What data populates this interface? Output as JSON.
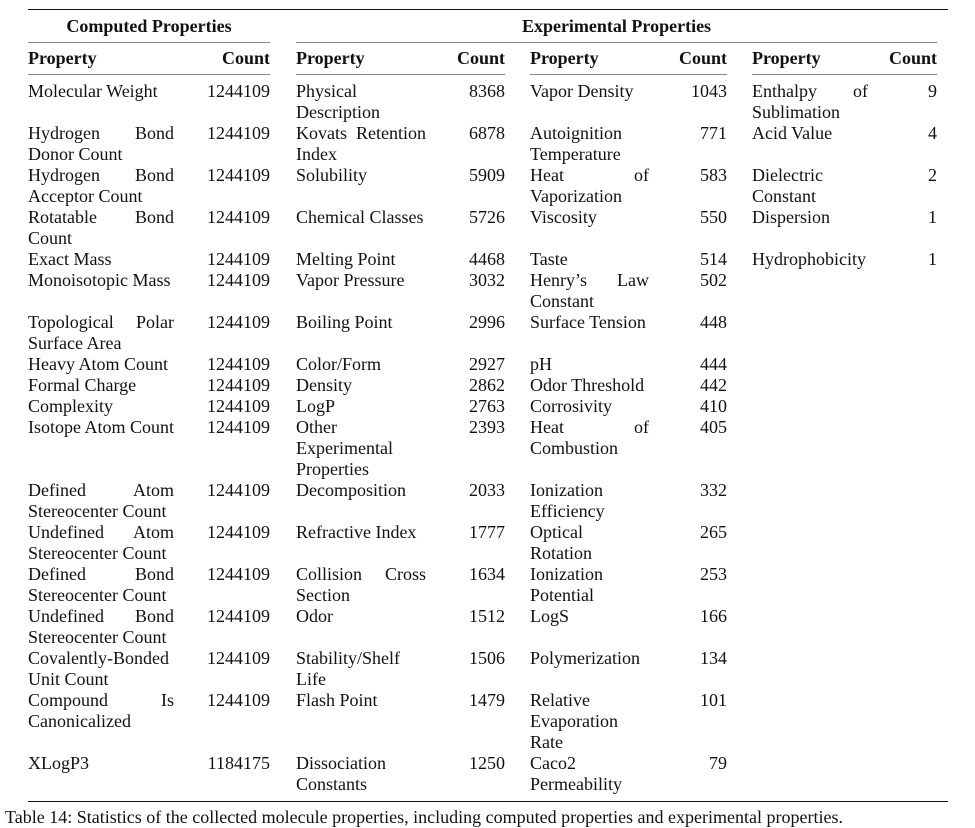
{
  "table": {
    "groups": [
      "Computed Properties",
      "Experimental Properties"
    ],
    "col_headers": {
      "property": "Property",
      "count": "Count"
    },
    "rows": [
      [
        [
          "Molecular Weight",
          "1244109"
        ],
        [
          "Physical Description",
          "8368"
        ],
        [
          "Vapor Density",
          "1043"
        ],
        [
          "Enthalpy of Sublimation",
          "9"
        ]
      ],
      [
        [
          "Hydrogen Bond Donor Count",
          "1244109"
        ],
        [
          "Kovats Retention Index",
          "6878"
        ],
        [
          "Autoignition Temperature",
          "771"
        ],
        [
          "Acid Value",
          "4"
        ]
      ],
      [
        [
          "Hydrogen Bond Acceptor Count",
          "1244109"
        ],
        [
          "Solubility",
          "5909"
        ],
        [
          "Heat of Vaporization",
          "583"
        ],
        [
          "Dielectric Constant",
          "2"
        ]
      ],
      [
        [
          "Rotatable Bond Count",
          "1244109"
        ],
        [
          "Chemical Classes",
          "5726"
        ],
        [
          "Viscosity",
          "550"
        ],
        [
          "Dispersion",
          "1"
        ]
      ],
      [
        [
          "Exact Mass",
          "1244109"
        ],
        [
          "Melting Point",
          "4468"
        ],
        [
          "Taste",
          "514"
        ],
        [
          "Hydrophobicity",
          "1"
        ]
      ],
      [
        [
          "Monoisotopic Mass",
          "1244109"
        ],
        [
          "Vapor Pressure",
          "3032"
        ],
        [
          "Henry’s Law Constant",
          "502"
        ],
        [
          "",
          ""
        ]
      ],
      [
        [
          "Topological Polar Surface Area",
          "1244109"
        ],
        [
          "Boiling Point",
          "2996"
        ],
        [
          "Surface Tension",
          "448"
        ],
        [
          "",
          ""
        ]
      ],
      [
        [
          "Heavy Atom Count",
          "1244109"
        ],
        [
          "Color/Form",
          "2927"
        ],
        [
          "pH",
          "444"
        ],
        [
          "",
          ""
        ]
      ],
      [
        [
          "Formal Charge",
          "1244109"
        ],
        [
          "Density",
          "2862"
        ],
        [
          "Odor Threshold",
          "442"
        ],
        [
          "",
          ""
        ]
      ],
      [
        [
          "Complexity",
          "1244109"
        ],
        [
          "LogP",
          "2763"
        ],
        [
          "Corrosivity",
          "410"
        ],
        [
          "",
          ""
        ]
      ],
      [
        [
          "Isotope Atom Count",
          "1244109"
        ],
        [
          "Other Experimental Properties",
          "2393"
        ],
        [
          "Heat of Combustion",
          "405"
        ],
        [
          "",
          ""
        ]
      ],
      [
        [
          "Defined Atom Stereocenter Count",
          "1244109"
        ],
        [
          "Decomposition",
          "2033"
        ],
        [
          "Ionization Efficiency",
          "332"
        ],
        [
          "",
          ""
        ]
      ],
      [
        [
          "Undefined Atom Stereocenter Count",
          "1244109"
        ],
        [
          "Refractive Index",
          "1777"
        ],
        [
          "Optical Rotation",
          "265"
        ],
        [
          "",
          ""
        ]
      ],
      [
        [
          "Defined Bond Stereocenter Count",
          "1244109"
        ],
        [
          "Collision Cross Section",
          "1634"
        ],
        [
          "Ionization Potential",
          "253"
        ],
        [
          "",
          ""
        ]
      ],
      [
        [
          "Undefined Bond Stereocenter Count",
          "1244109"
        ],
        [
          "Odor",
          "1512"
        ],
        [
          "LogS",
          "166"
        ],
        [
          "",
          ""
        ]
      ],
      [
        [
          "Covalently-Bonded Unit Count",
          "1244109"
        ],
        [
          "Stability/Shelf Life",
          "1506"
        ],
        [
          "Polymerization",
          "134"
        ],
        [
          "",
          ""
        ]
      ],
      [
        [
          "Compound Is Canonicalized",
          "1244109"
        ],
        [
          "Flash Point",
          "1479"
        ],
        [
          "Relative Evaporation Rate",
          "101"
        ],
        [
          "",
          ""
        ]
      ],
      [
        [
          "XLogP3",
          "1184175"
        ],
        [
          "Dissociation Constants",
          "1250"
        ],
        [
          "Caco2 Permeability",
          "79"
        ],
        [
          "",
          ""
        ]
      ]
    ]
  },
  "caption": "Table 14: Statistics of the collected molecule properties, including computed properties and experimental properties."
}
